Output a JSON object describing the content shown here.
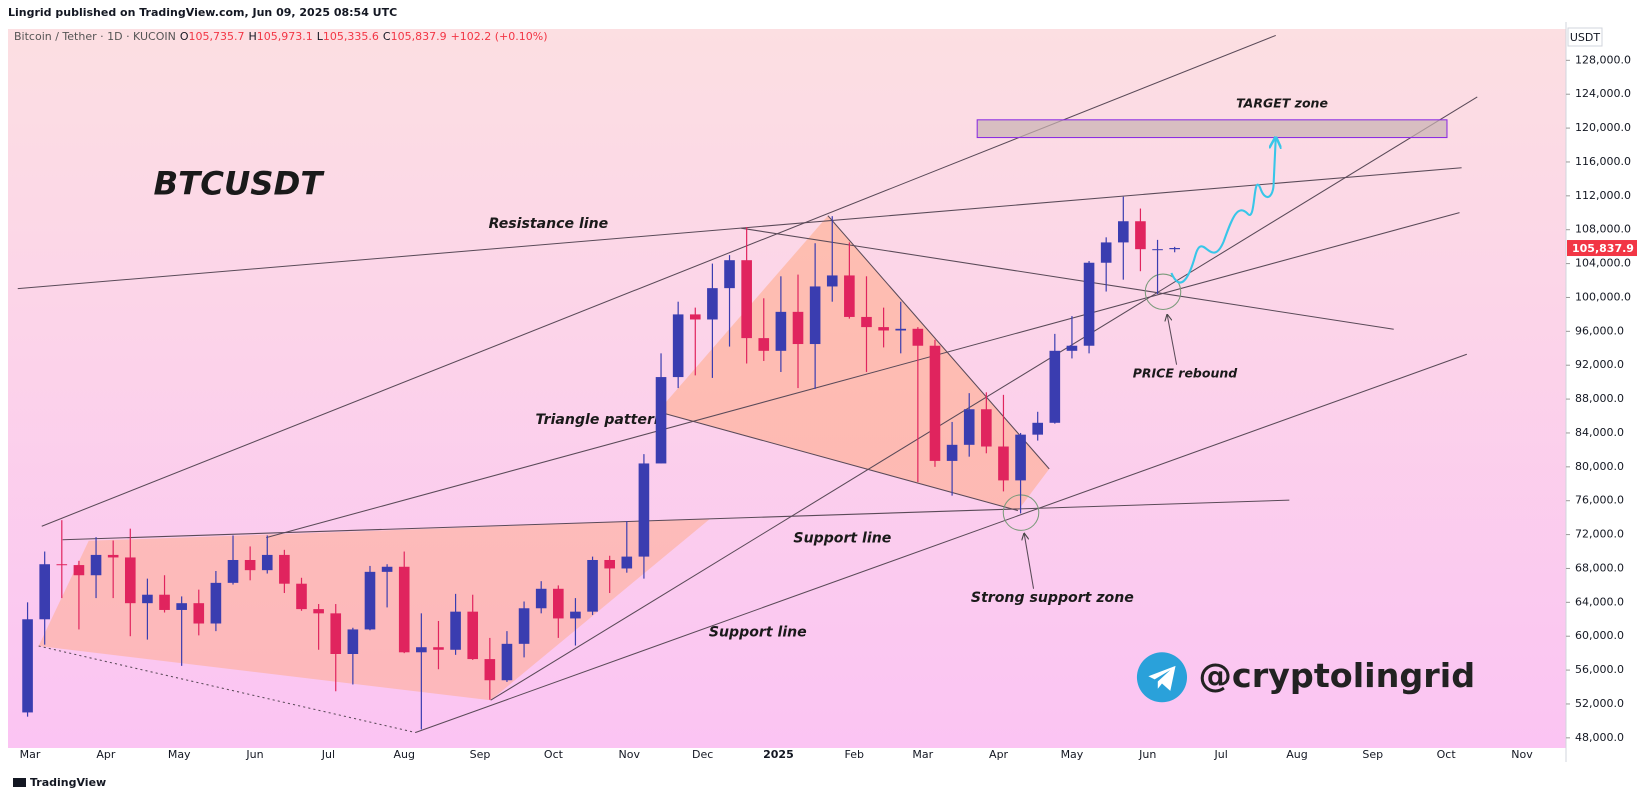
{
  "header": "Lingrid published on TradingView.com, Jun 09, 2025 08:54 UTC",
  "footer": "TradingView",
  "chart_data": {
    "type": "candlestick",
    "title": "BTCUSDT",
    "watermark": "@cryptolingrid",
    "legend": [
      {
        "key": "O",
        "value": "105,735.7"
      },
      {
        "key": "H",
        "value": "105,973.1"
      },
      {
        "key": "L",
        "value": "105,335.6"
      },
      {
        "key": "C",
        "value": "105,837.9"
      }
    ],
    "change": "+102.2 (+0.10%)",
    "y_unit": "USDT",
    "annotations": [
      "Resistance line",
      "Triangle pattern",
      "Support line",
      "Support line",
      "Strong support zone",
      "PRICE rebound",
      "TARGET zone"
    ],
    "last_price": {
      "value": 105837.9,
      "label": "105,837.9"
    },
    "xlim": [
      -9,
      628
    ],
    "ylim": [
      46800,
      131700
    ],
    "xticks": [
      {
        "value": 0,
        "label": "Mar"
      },
      {
        "value": 31,
        "label": "Apr"
      },
      {
        "value": 61,
        "label": "May"
      },
      {
        "value": 92,
        "label": "Jun"
      },
      {
        "value": 122,
        "label": "Jul"
      },
      {
        "value": 153,
        "label": "Aug"
      },
      {
        "value": 184,
        "label": "Sep"
      },
      {
        "value": 214,
        "label": "Oct"
      },
      {
        "value": 245,
        "label": "Nov"
      },
      {
        "value": 275,
        "label": "Dec"
      },
      {
        "value": 306,
        "label": "2025"
      },
      {
        "value": 337,
        "label": "Feb"
      },
      {
        "value": 365,
        "label": "Mar"
      },
      {
        "value": 396,
        "label": "Apr"
      },
      {
        "value": 426,
        "label": "May"
      },
      {
        "value": 457,
        "label": "Jun"
      },
      {
        "value": 487,
        "label": "Jul"
      },
      {
        "value": 518,
        "label": "Aug"
      },
      {
        "value": 549,
        "label": "Sep"
      },
      {
        "value": 579,
        "label": "Oct"
      },
      {
        "value": 610,
        "label": "Nov"
      }
    ],
    "yticks": [
      {
        "value": 48000,
        "label": "48,000.0"
      },
      {
        "value": 52000,
        "label": "52,000.0"
      },
      {
        "value": 56000,
        "label": "56,000.0"
      },
      {
        "value": 60000,
        "label": "60,000.0"
      },
      {
        "value": 64000,
        "label": "64,000.0"
      },
      {
        "value": 68000,
        "label": "68,000.0"
      },
      {
        "value": 72000,
        "label": "72,000.0"
      },
      {
        "value": 76000,
        "label": "76,000.0"
      },
      {
        "value": 80000,
        "label": "80,000.0"
      },
      {
        "value": 84000,
        "label": "84,000.0"
      },
      {
        "value": 88000,
        "label": "88,000.0"
      },
      {
        "value": 92000,
        "label": "92,000.0"
      },
      {
        "value": 96000,
        "label": "96,000.0"
      },
      {
        "value": 100000,
        "label": "100,000.0"
      },
      {
        "value": 104000,
        "label": "104,000.0"
      },
      {
        "value": 108000,
        "label": "108,000.0"
      },
      {
        "value": 112000,
        "label": "112,000.0"
      },
      {
        "value": 116000,
        "label": "116,000.0"
      },
      {
        "value": 120000,
        "label": "120,000.0"
      },
      {
        "value": 124000,
        "label": "124,000.0"
      },
      {
        "value": 128000,
        "label": "128,000.0"
      }
    ],
    "up_color": "#3a3db0",
    "down_color": "#e0245e",
    "last_color": "#f23645",
    "series": [
      {
        "name": "Bitcoin / Tether · 1D · KUCOIN",
        "x": [
          -1,
          6,
          13,
          20,
          27,
          34,
          41,
          48,
          55,
          62,
          69,
          76,
          83,
          90,
          97,
          104,
          111,
          118,
          125,
          132,
          139,
          146,
          153,
          160,
          167,
          174,
          181,
          188,
          195,
          202,
          209,
          216,
          223,
          230,
          237,
          244,
          251,
          258,
          265,
          272,
          279,
          286,
          293,
          300,
          307,
          314,
          321,
          328,
          335,
          342,
          349,
          356,
          363,
          370,
          377,
          384,
          391,
          398,
          405,
          412,
          419,
          426,
          433,
          440,
          447,
          454,
          461,
          468
        ],
        "open": [
          51000,
          62000,
          68500,
          68400,
          67200,
          69600,
          69300,
          63900,
          64900,
          63100,
          63900,
          61500,
          66300,
          69000,
          67800,
          69600,
          66200,
          63200,
          62700,
          57900,
          60800,
          67600,
          68200,
          58100,
          58700,
          58400,
          62900,
          57300,
          54800,
          59100,
          63300,
          65600,
          62100,
          62900,
          69000,
          68000,
          69400,
          80400,
          90600,
          98000,
          97400,
          101100,
          104400,
          95200,
          93700,
          98300,
          94500,
          101300,
          102600,
          97700,
          96500,
          96100,
          96300,
          94300,
          80700,
          82600,
          86800,
          82400,
          78400,
          83800,
          85200,
          93700,
          94300,
          104100,
          106500,
          109000,
          105700,
          105700
        ],
        "high": [
          64000,
          70000,
          73700,
          68900,
          71700,
          71300,
          72700,
          66800,
          67200,
          64700,
          65500,
          67700,
          71900,
          70600,
          71900,
          70200,
          66900,
          63800,
          63800,
          61000,
          68300,
          68500,
          70000,
          62700,
          61800,
          65000,
          64900,
          59800,
          60600,
          64100,
          66500,
          66000,
          64500,
          69400,
          69500,
          73600,
          81500,
          93400,
          99500,
          98800,
          104000,
          105000,
          108300,
          99900,
          102500,
          102700,
          106400,
          109600,
          106500,
          102500,
          98800,
          99500,
          96500,
          95000,
          85300,
          88700,
          88800,
          88500,
          84000,
          86500,
          95700,
          97800,
          104300,
          107100,
          111900,
          110500,
          106800,
          105973
        ],
        "low": [
          50500,
          59000,
          64500,
          60800,
          64500,
          64500,
          60000,
          59600,
          62800,
          56500,
          60100,
          60600,
          66100,
          66600,
          67400,
          65100,
          63000,
          58400,
          53500,
          54300,
          60700,
          63400,
          58000,
          49000,
          56100,
          57800,
          57200,
          52500,
          54600,
          57500,
          62700,
          59800,
          58900,
          62500,
          65100,
          67500,
          66800,
          80400,
          89300,
          90800,
          90500,
          94200,
          92200,
          92500,
          91200,
          89300,
          89200,
          99500,
          97500,
          91200,
          94100,
          93400,
          78200,
          80000,
          76600,
          81200,
          81600,
          77100,
          74500,
          83100,
          85100,
          92800,
          93400,
          100700,
          102100,
          103100,
          100400,
          105335
        ],
        "close": [
          62000,
          68500,
          68400,
          67200,
          69600,
          69300,
          63900,
          64900,
          63100,
          63900,
          61500,
          66300,
          69000,
          67800,
          69600,
          66200,
          63200,
          62700,
          57900,
          60800,
          67600,
          68200,
          58100,
          58700,
          58400,
          62900,
          57300,
          54800,
          59100,
          63300,
          65600,
          62100,
          62900,
          69000,
          68000,
          69400,
          80400,
          90600,
          98000,
          97400,
          101100,
          104400,
          95200,
          93700,
          98300,
          94500,
          101300,
          102600,
          97700,
          96500,
          96100,
          96300,
          94300,
          80700,
          82600,
          86800,
          82400,
          78400,
          83800,
          85200,
          93700,
          94300,
          104100,
          106500,
          109000,
          105700,
          105700,
          105837.9
        ]
      }
    ]
  }
}
